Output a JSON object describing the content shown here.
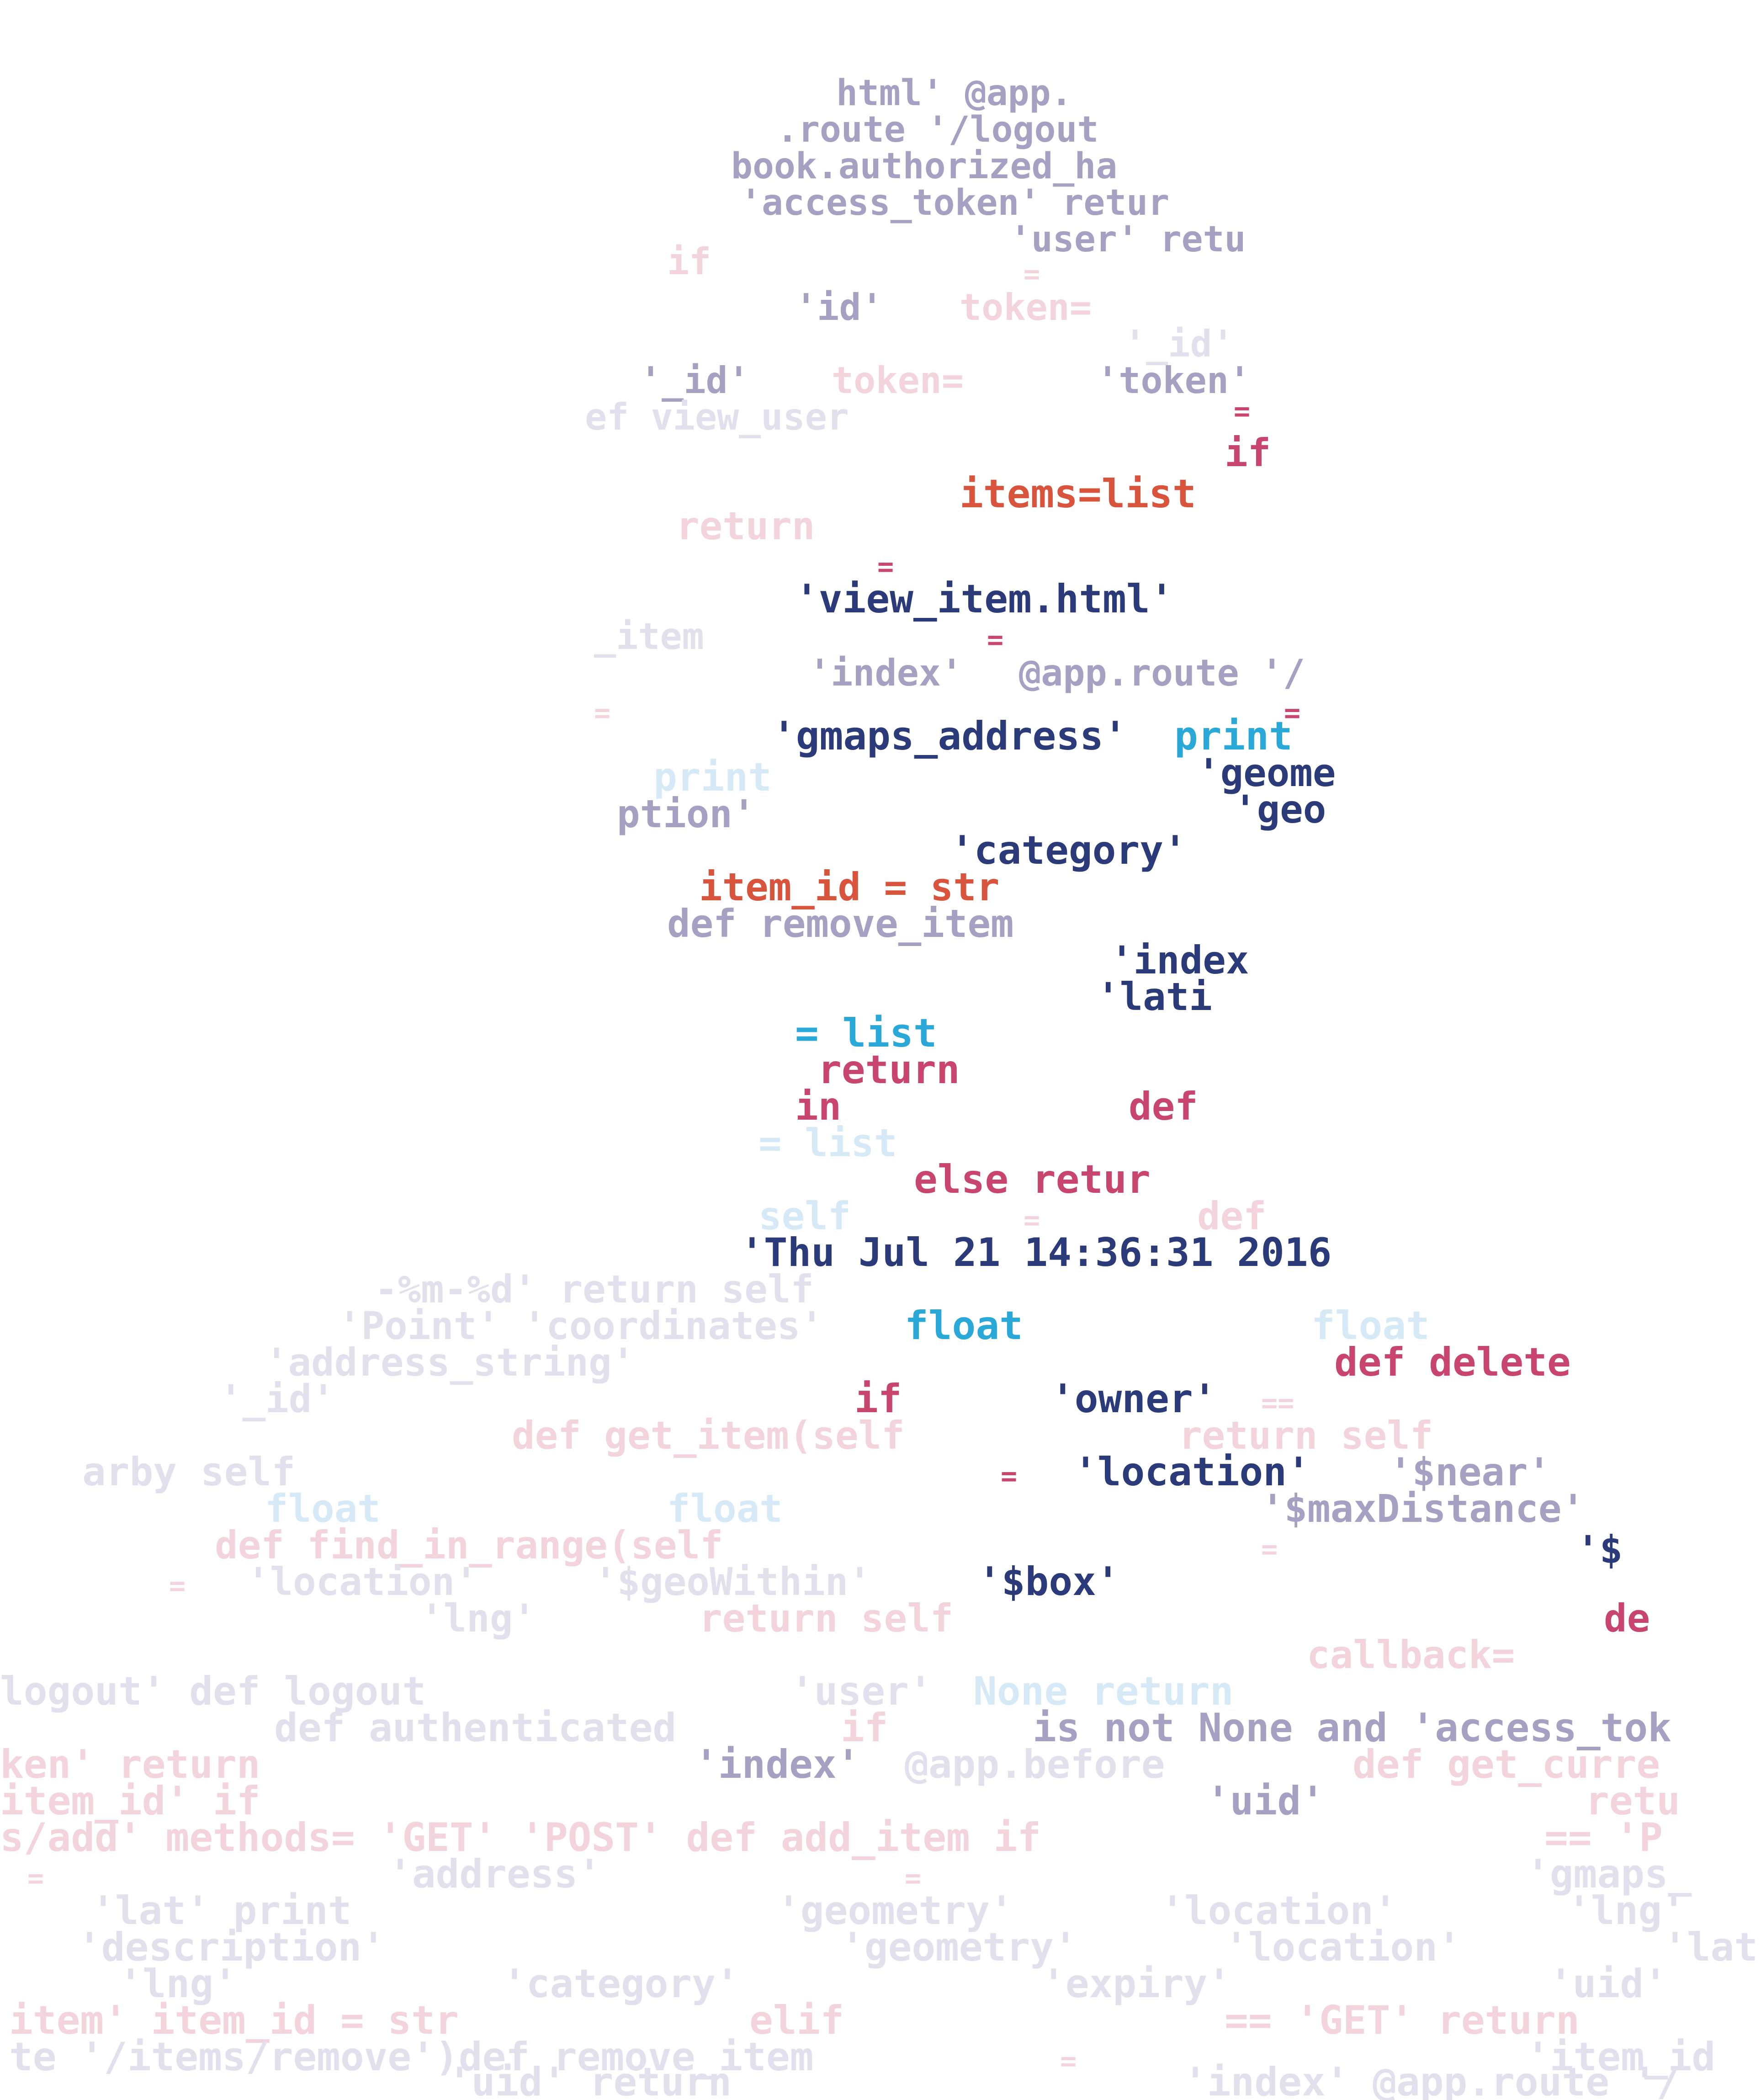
{
  "colors": {
    "background": "#ffffff",
    "navy": "#2b3a78",
    "red": "#d9543c",
    "pink": "#c8466e",
    "cyan": "#2aa8d8",
    "grey_lavender": "#a6a0c2",
    "faint_grey": "#e2e0ec",
    "faint_pink": "#f3d3dc",
    "faint_blue": "#d6e9f6"
  },
  "snippets": [
    {
      "text": "html' @app.",
      "color": "grey_lavender"
    },
    {
      "text": ".route '/logout",
      "color": "grey_lavender"
    },
    {
      "text": "book.authorized_ha",
      "color": "grey_lavender"
    },
    {
      "text": "'access_token' retur",
      "color": "grey_lavender"
    },
    {
      "text": "'user' retu",
      "color": "grey_lavender"
    },
    {
      "text": "if",
      "color": "faint_pink"
    },
    {
      "text": "=",
      "color": "faint_pink"
    },
    {
      "text": "'id'",
      "color": "grey_lavender"
    },
    {
      "text": "token=",
      "color": "faint_pink"
    },
    {
      "text": "'_id'",
      "color": "grey_lavender"
    },
    {
      "text": "'_id'",
      "color": "faint_grey"
    },
    {
      "text": "token=",
      "color": "faint_pink"
    },
    {
      "text": "'token'",
      "color": "grey_lavender"
    },
    {
      "text": "ef view_user",
      "color": "faint_grey"
    },
    {
      "text": "=",
      "color": "pink"
    },
    {
      "text": "if",
      "color": "pink"
    },
    {
      "text": "items=list",
      "color": "red"
    },
    {
      "text": "return",
      "color": "faint_pink"
    },
    {
      "text": "=",
      "color": "pink"
    },
    {
      "text": "'view_item.html'",
      "color": "navy"
    },
    {
      "text": "_item",
      "color": "faint_grey"
    },
    {
      "text": "=",
      "color": "pink"
    },
    {
      "text": "'index'",
      "color": "grey_lavender"
    },
    {
      "text": "@app.route '/",
      "color": "grey_lavender"
    },
    {
      "text": "=",
      "color": "faint_pink"
    },
    {
      "text": "=",
      "color": "pink"
    },
    {
      "text": "'gmaps_address'",
      "color": "navy"
    },
    {
      "text": "print",
      "color": "cyan"
    },
    {
      "text": "print",
      "color": "faint_blue"
    },
    {
      "text": "'geome",
      "color": "navy"
    },
    {
      "text": "ption'",
      "color": "grey_lavender"
    },
    {
      "text": "'geo",
      "color": "navy"
    },
    {
      "text": "'category'",
      "color": "navy"
    },
    {
      "text": "item_id = str",
      "color": "red"
    },
    {
      "text": "def remove_item",
      "color": "grey_lavender"
    },
    {
      "text": "'index",
      "color": "navy"
    },
    {
      "text": "'lati",
      "color": "navy"
    },
    {
      "text": "= list",
      "color": "cyan"
    },
    {
      "text": "return",
      "color": "pink"
    },
    {
      "text": "in",
      "color": "pink"
    },
    {
      "text": "def",
      "color": "pink"
    },
    {
      "text": "= list",
      "color": "faint_blue"
    },
    {
      "text": "else retur",
      "color": "pink"
    },
    {
      "text": "self",
      "color": "faint_blue"
    },
    {
      "text": "=",
      "color": "faint_pink"
    },
    {
      "text": "def",
      "color": "faint_pink"
    },
    {
      "text": "'Thu Jul 21 14:36:31 2016",
      "color": "navy"
    },
    {
      "text": "-%m-%d' return self",
      "color": "faint_grey"
    },
    {
      "text": "'Point' 'coordinates'",
      "color": "faint_grey"
    },
    {
      "text": "float",
      "color": "cyan"
    },
    {
      "text": "float",
      "color": "faint_blue"
    },
    {
      "text": "'address_string'",
      "color": "faint_grey"
    },
    {
      "text": "def delete",
      "color": "pink"
    },
    {
      "text": "'_id'",
      "color": "faint_grey"
    },
    {
      "text": "if",
      "color": "pink"
    },
    {
      "text": "'owner'",
      "color": "navy"
    },
    {
      "text": "==",
      "color": "faint_pink"
    },
    {
      "text": "def get_item(self",
      "color": "faint_pink"
    },
    {
      "text": "return self",
      "color": "faint_pink"
    },
    {
      "text": "arby self",
      "color": "faint_grey"
    },
    {
      "text": "=",
      "color": "pink"
    },
    {
      "text": "'location'",
      "color": "navy"
    },
    {
      "text": "'$near'",
      "color": "grey_lavender"
    },
    {
      "text": "float",
      "color": "faint_blue"
    },
    {
      "text": "float",
      "color": "faint_blue"
    },
    {
      "text": "'$maxDistance'",
      "color": "grey_lavender"
    },
    {
      "text": "def find_in_range(self",
      "color": "faint_pink"
    },
    {
      "text": "=",
      "color": "faint_pink"
    },
    {
      "text": "'$",
      "color": "navy"
    },
    {
      "text": "=",
      "color": "faint_pink"
    },
    {
      "text": "'location'",
      "color": "faint_grey"
    },
    {
      "text": "'$geoWithin'",
      "color": "faint_grey"
    },
    {
      "text": "'$box'",
      "color": "navy"
    },
    {
      "text": "'lng'",
      "color": "faint_grey"
    },
    {
      "text": "return self",
      "color": "faint_pink"
    },
    {
      "text": "de",
      "color": "pink"
    },
    {
      "text": "callback=",
      "color": "faint_pink"
    },
    {
      "text": "logout' def logout",
      "color": "faint_grey"
    },
    {
      "text": "'user'",
      "color": "faint_grey"
    },
    {
      "text": "None return",
      "color": "faint_blue"
    },
    {
      "text": "def authenticated",
      "color": "faint_grey"
    },
    {
      "text": "if",
      "color": "faint_pink"
    },
    {
      "text": "is not None and 'access_tok",
      "color": "grey_lavender"
    },
    {
      "text": "ken' return",
      "color": "faint_pink"
    },
    {
      "text": "'index'",
      "color": "grey_lavender"
    },
    {
      "text": "@app.before",
      "color": "faint_grey"
    },
    {
      "text": "def get_curre",
      "color": "faint_pink"
    },
    {
      "text": "item_id' if",
      "color": "faint_pink"
    },
    {
      "text": "'uid'",
      "color": "grey_lavender"
    },
    {
      "text": "retu",
      "color": "faint_pink"
    },
    {
      "text": "s/add' methods= 'GET' 'POST' def add_item if",
      "color": "faint_pink"
    },
    {
      "text": "== 'P",
      "color": "faint_pink"
    },
    {
      "text": "=",
      "color": "faint_pink"
    },
    {
      "text": "'address'",
      "color": "faint_grey"
    },
    {
      "text": "=",
      "color": "faint_pink"
    },
    {
      "text": "'gmaps_",
      "color": "faint_grey"
    },
    {
      "text": "'lat' print",
      "color": "faint_grey"
    },
    {
      "text": "'geometry'",
      "color": "faint_grey"
    },
    {
      "text": "'location'",
      "color": "faint_grey"
    },
    {
      "text": "'lng'",
      "color": "faint_grey"
    },
    {
      "text": "'description'",
      "color": "faint_grey"
    },
    {
      "text": "'geometry'",
      "color": "faint_grey"
    },
    {
      "text": "'location'",
      "color": "faint_grey"
    },
    {
      "text": "'lat",
      "color": "faint_grey"
    },
    {
      "text": "'lng'",
      "color": "faint_grey"
    },
    {
      "text": "'category'",
      "color": "faint_grey"
    },
    {
      "text": "'expiry'",
      "color": "faint_grey"
    },
    {
      "text": "'uid'",
      "color": "faint_grey"
    },
    {
      "text": "item' item_id = str",
      "color": "faint_pink"
    },
    {
      "text": "elif",
      "color": "faint_pink"
    },
    {
      "text": "== 'GET' return",
      "color": "faint_pink"
    },
    {
      "text": "te '/items/remove')def remove_item",
      "color": "faint_grey"
    },
    {
      "text": "=",
      "color": "faint_pink"
    },
    {
      "text": "'item_id",
      "color": "faint_grey"
    },
    {
      "text": "'uid' return",
      "color": "faint_grey"
    },
    {
      "text": "'index' @app.route '/",
      "color": "faint_grey"
    }
  ]
}
